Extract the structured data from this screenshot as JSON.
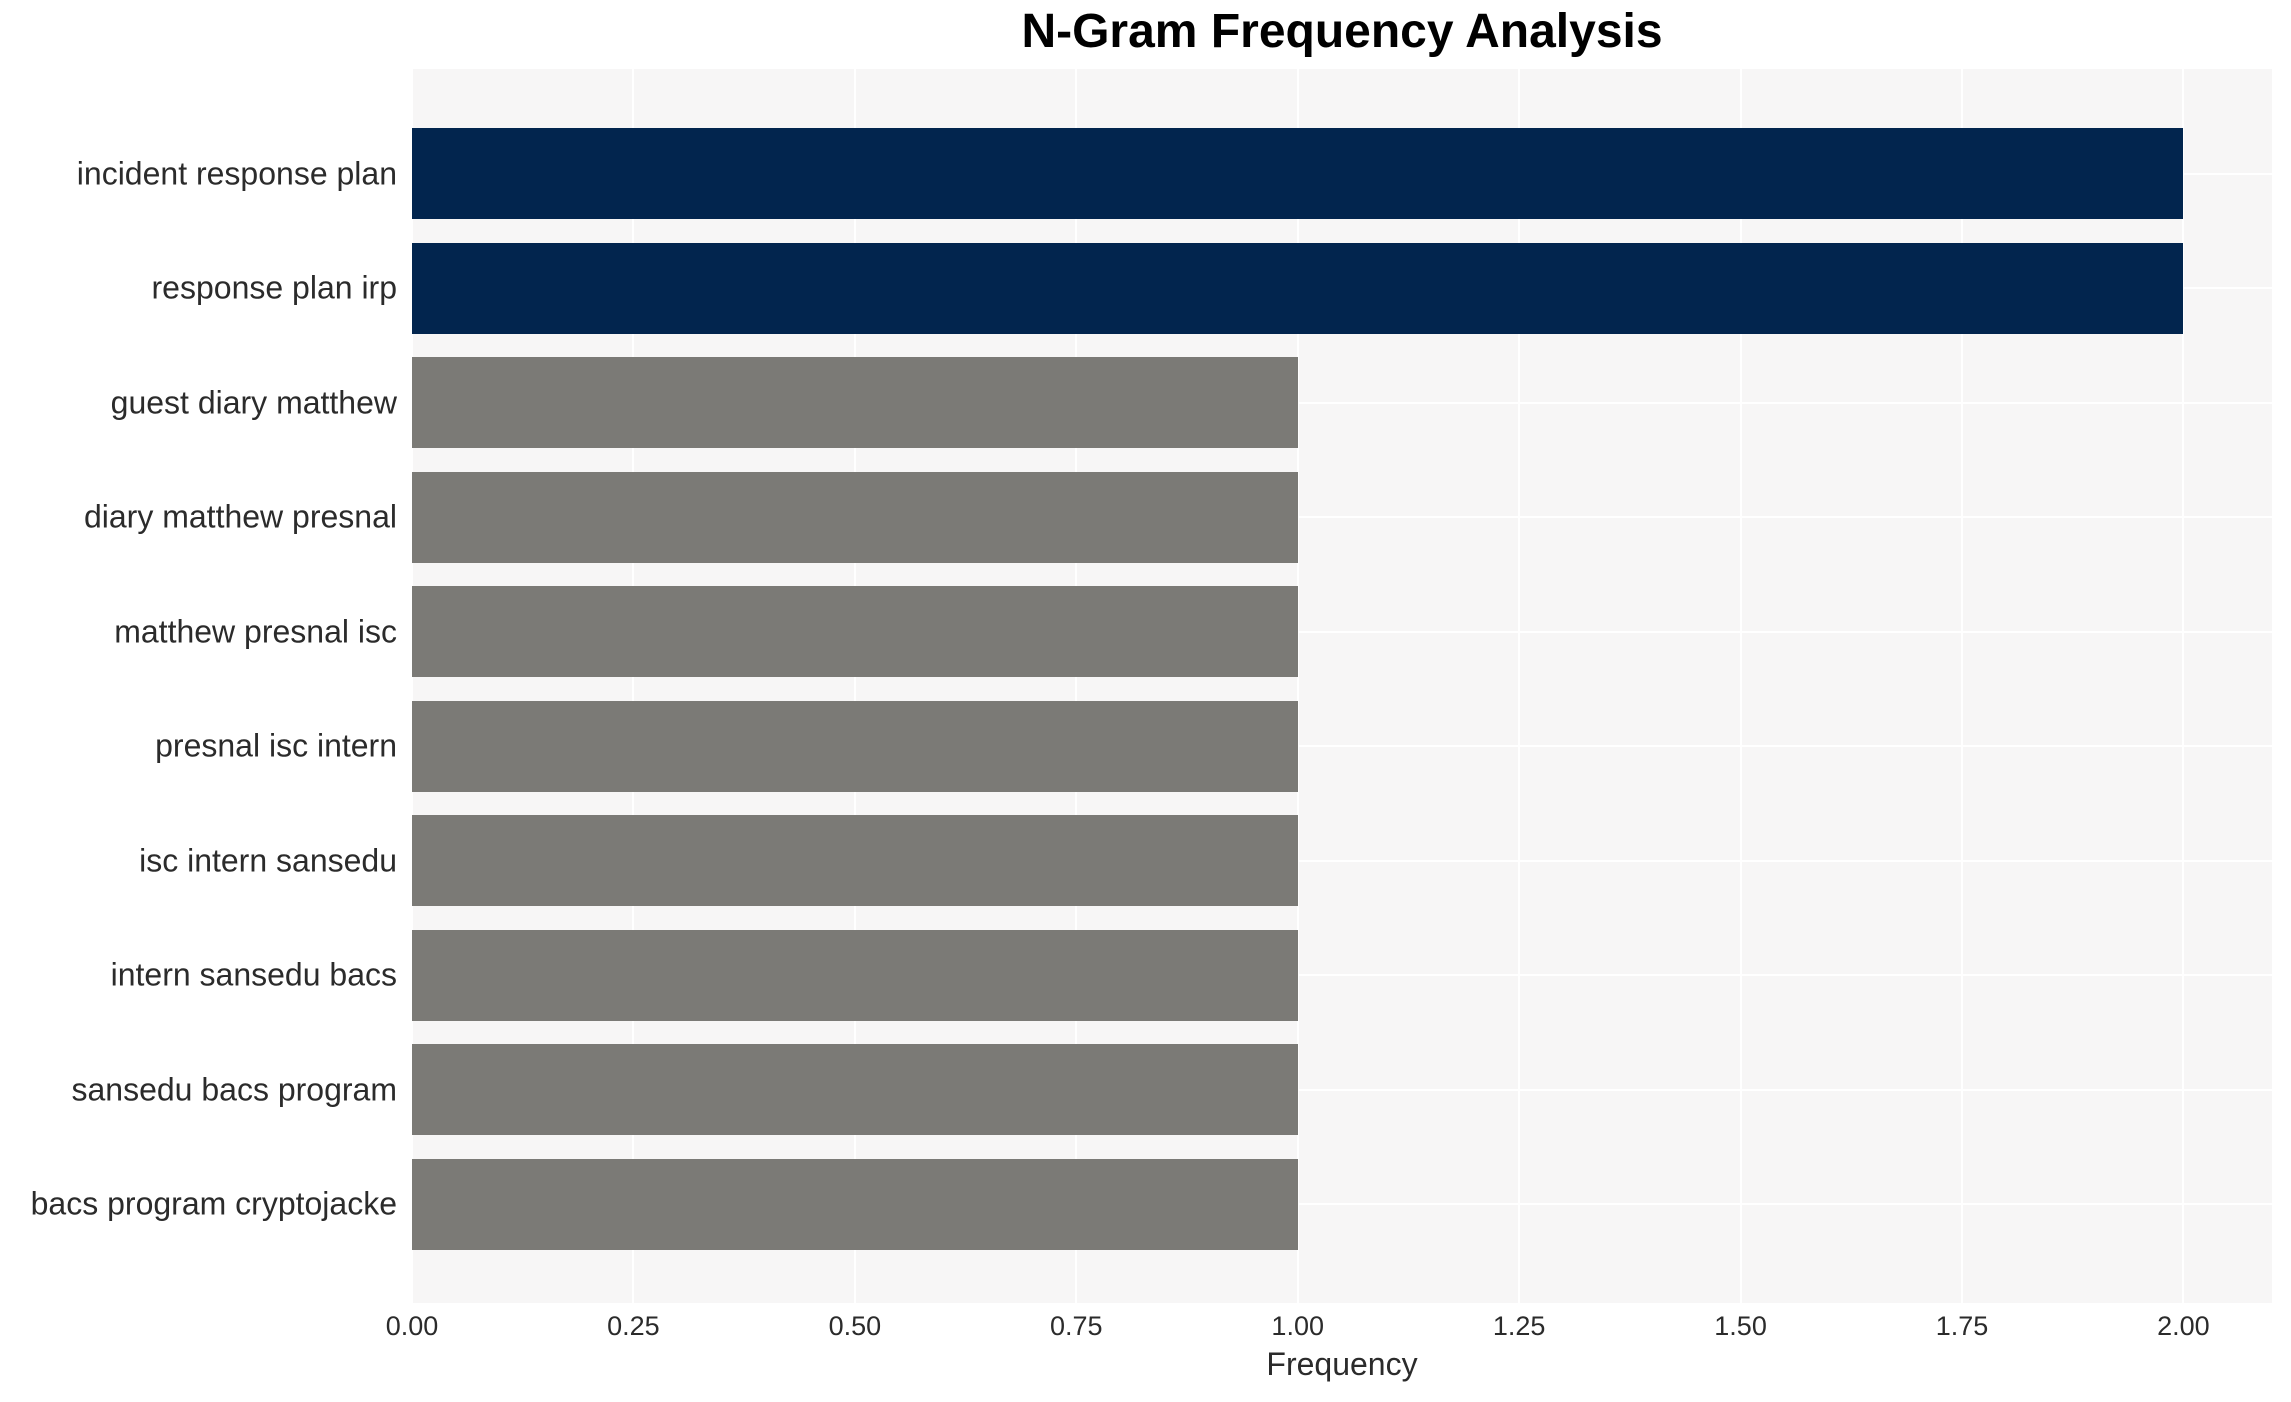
{
  "chart_data": {
    "type": "bar",
    "orientation": "horizontal",
    "title": "N-Gram Frequency Analysis",
    "xlabel": "Frequency",
    "ylabel": "",
    "categories": [
      "incident response plan",
      "response plan irp",
      "guest diary matthew",
      "diary matthew presnal",
      "matthew presnal isc",
      "presnal isc intern",
      "isc intern sansedu",
      "intern sansedu bacs",
      "sansedu bacs program",
      "bacs program cryptojacke"
    ],
    "values": [
      2.0,
      2.0,
      1.0,
      1.0,
      1.0,
      1.0,
      1.0,
      1.0,
      1.0,
      1.0
    ],
    "bar_colors": [
      "#02254e",
      "#02254e",
      "#7b7a76",
      "#7b7a76",
      "#7b7a76",
      "#7b7a76",
      "#7b7a76",
      "#7b7a76",
      "#7b7a76",
      "#7b7a76"
    ],
    "xticks": [
      0.0,
      0.25,
      0.5,
      0.75,
      1.0,
      1.25,
      1.5,
      1.75,
      2.0
    ],
    "xtick_labels": [
      "0.00",
      "0.25",
      "0.50",
      "0.75",
      "1.00",
      "1.25",
      "1.50",
      "1.75",
      "2.00"
    ],
    "xlim": [
      0,
      2.1
    ],
    "grid": true,
    "legend": false,
    "colors": {
      "highlight": "#02254e",
      "default": "#7b7a76",
      "plot_background": "#f7f6f6",
      "gridline": "#ffffff",
      "text": "#2b2b2b",
      "title_text": "#000000"
    }
  }
}
